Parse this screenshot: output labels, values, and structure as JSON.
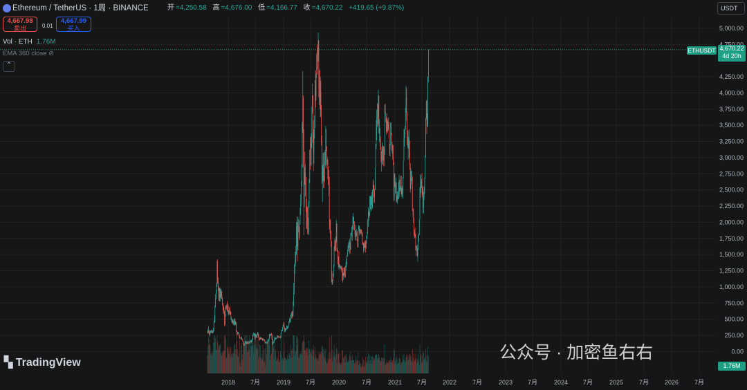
{
  "header": {
    "title": "Ethereum / TetherUS · 1周 · BINANCE",
    "open_k": "开",
    "open_v": "=4,250.58",
    "high_k": "高",
    "high_v": "=4,676.00",
    "low_k": "低",
    "low_v": "=4,166.77",
    "close_k": "收",
    "close_v": "=4,670.22",
    "change": "+419.65 (+9.87%)"
  },
  "trade": {
    "sell_price": "4,667.98",
    "sell_label": "卖出",
    "spread": "0.01",
    "buy_price": "4,667.99",
    "buy_label": "买入"
  },
  "indicators": {
    "vol_label": "Vol · ETH",
    "vol_value": "1.76M",
    "ema_label": "EMA 360 close"
  },
  "price_axis": {
    "unit": "USDT",
    "ticks": [
      "5,000.00",
      "4,750.00",
      "4,250.00",
      "4,000.00",
      "3,750.00",
      "3,500.00",
      "3,250.00",
      "3,000.00",
      "2,750.00",
      "2,500.00",
      "2,250.00",
      "2,000.00",
      "1,750.00",
      "1,500.00",
      "1,250.00",
      "1,000.00",
      "750.00",
      "500.00",
      "250.00",
      "0.00"
    ],
    "last_price": "4,670.22",
    "countdown": "4d 20h",
    "symbol": "ETHUSDT",
    "vol_last": "1.76M"
  },
  "time_axis": [
    "2018",
    "7月",
    "2019",
    "7月",
    "2020",
    "7月",
    "2021",
    "7月",
    "2022",
    "7月",
    "2023",
    "7月",
    "2024",
    "7月",
    "2025",
    "7月",
    "2026",
    "7月"
  ],
  "branding": {
    "tradingview": "TradingView",
    "watermark": "公众号 · 加密鱼右右"
  },
  "colors": {
    "up": "#26a69a",
    "down": "#ef5350",
    "bg": "#161616",
    "grid": "#232323",
    "last_price": "#1e9e84"
  },
  "chart_data": {
    "type": "candlestick",
    "title": "Ethereum / TetherUS · 1周 · BINANCE",
    "x_start": "2017-08-14",
    "interval": "1 week",
    "ylim": [
      0,
      5000
    ],
    "ohlc_note": "weekly candles, one per line: open,high,low,close (USDT); volume axis unscaled",
    "ohlc": "301,317,278,299\n299,350,283,336\n336,394,286,302\n302,328,255,275\n275,305,223,282\n282,330,264,299\n299,326,285,314\n314,340,292,303\n303,326,290,310\n310,335,283,289\n289,322,280,312\n312,371,290,345\n345,478,317,448\n448,558,441,490\n490,714,453,692\n692,890,679,822\n822,958,804,933\n933,1064,894,1037\n1037,1406,1001,1368\n1368,1427,1054,1102\n1102,1152,934,989\n989,1014,782,838\n838,991,790,966\n966,990,773,831\n831,979,776,958\n958,977,833,847\n847,954,811,926\n926,930,814,825\n825,839,712,743\n743,751,630,689\n689,719,593,646\n646,692,578,597\n597,630,391,424\n424,584,402,565\n565,712,540,689\n689,711,643,679\n679,728,655,693\n693,781,627,690\n690,744,610,686\n686,718,571,596\n596,639,555,600\n600,680,578,618\n618,699,566,614\n614,632,567,591\n591,615,490,505\n505,535,461,508\n508,507,435,442\n442,491,443,473\n473,499,426,456\n456,477,408,425\n425,510,410,465\n465,519,404,481\n481,498,406,417\n417,469,412,447\n447,453,305,318\n318,330,242,276\n276,311,258,285\n285,304,270,282\n282,305,273,287\n287,282,237,247\n247,265,193,226\n226,219,207,209\n209,206,203,205\n205,227,181,209\n209,236,183,200\n200,203,187,192\n192,183,156,165\n165,164,118,121\n121,127,94,97\n97,108,84,98\n98,161,100,130\n130,158,121,138\n138,165,118,140\n140,155,120,137\n137,162,116,159\n159,141,116,129\n129,137,115,128\n128,166,131,137\n137,153,127,132\n132,163,118,159\n159,157,138,142\n142,182,145,171\n171,165,127,150\n150,181,146,169\n169,198,154,184\n184,263,194,253\n253,290,232,269\n269,294,252,277\n277,266,183,241\n241,283,224,273\n273,282,188,240\n240,260,212,223\n223,267,219,250\n250,281,208,264\n264,306,255,290\n290,300,214,273\n273,239,214,216\n216,200,174,186\n186,215,170,196\n196,231,186,215\n215,211,188,191\n191,224,196,210\n210,203,186,202\n202,194,173,187\n187,210,165,176\n176,200,167,191\n191,185,174,184\n184,164,151,155\n155,155,124,133\n133,136,134,140\n140,164,122,148\n148,146,125,135\n135,147,114,129\n129,171,132,149\n149,186,141,173\n173,195,150,188\n188,273,182,240\n240,267,211,248\n248,277,256,268\n268,273,238,269\n269,287,247,268\n268,274,184,194\n194,189,106,118\n118,152,105,135\n135,156,126,137\n137,176,163,174\n174,221,159,206\n206,218,178,185\n185,217,185,202\n202,210,195,209\n209,219,195,203\n203,252,237,246\n246,243,219,232\n232,251,211,223\n223,233,220,227\n227,232,212,229\n229,233,219,227\n227,243,205,208\n208,288,214,277\n277,333,295,320\n320,335,309,318\n318,381,349,376\n376,417,387,409\n409,449,383,419\n419,458,347,378\n378,335,295,308\n308,357,326,350\n350,361,327,332\n332,367,338,355\n355,403,374,392\n392,397,346,359\n359,390,357,387\n387,413,376,407\n407,474,413,466\n466,512,442,496\n496,516,455,469\n469,559,446,554\n554,595,541,577\n577,614,512,573\n573,629,513,539\n539,624,567,599\n599,780,549,752\n752,1063,703,933\n933,1345,880,1266\n1266,1368,1202,1327\n1327,1537,1320,1544\n1544,1637,1367,1494\n1494,2006,1509,1940\n1940,2092,1627,1834\n1834,1995,1394,1565\n1565,2082,1602,1911\n1911,2049,1840,1935\n1935,1924,1725,1820\n1820,2028,1761,1960\n1960,2223,1959,2146\n2146,2432,2119,2331\n2331,2641,2249,2549\n2549,2898,2548,2841\n2841,3556,2848,3525\n3525,4339,3383,3910\n3910,3963,2853,3161\n3161,3437,1800,2282\n2282,2852,2233,2771\n2771,3090,2580,2759\n2759,2893,2398,2697\n2697,2704,2156,2285\n2285,2363,1899,2133\n2133,2235,1895,2093\n2093,2241,1814,1940\n1940,2071,1814,1841\n1841,2325,1804,2290\n2290,2670,2224,2635\n2635,3121,2608,3116\n3116,3313,2810,3100\n3100,3326,2892,3162\n3162,3378,2867,3224\n3224,3785,3148,3723\n3723,4146,3680,3957\n3957,3969,3226,3376\n3376,3578,2792,3069\n3069,3440,2907,3342\n3342,3650,3292,3453\n3453,4198,3454,4104\n4104,4348,3774,3952\n3952,4301,3879,4267\n4267,4612,4233,4559\n4559,4748,4288,4551\n4551,4697,4362,4624\n4624,4933,4488,4813\n4813,4720,3933,4245\n4245,4371,3813,4087\n4087,4346,3752,3864\n3864,4253,3632,4022\n4022,4190,3625,3727\n3727,3816,3187,3257\n3257,3339,2597,2595\n2595,2881,2311,2638\n2638,3073,2670,2901\n2901,3078,2522,2716\n2716,2836,2530,2645\n2645,3087,2620,2928\n2928,3116,2842,3087\n3087,3491,2880,3440\n3440,3354,3104,3175\n3175,2978,2829,2924\n2924,3019,2886,2972\n2972,2939,2666,2862\n2862,2790,2577,2645\n2645,2811,2405,2572\n2572,2706,1888,2031\n2031,2035,1833,1964\n1964,2052,1731,1870\n1870,1794,1623,1712\n1712,1649,1071,1090\n1090,1240,1033,1062\n1062,1108,1035,1115\n1115,1205,1086,1198\n1198,1350,1152,1319\n1319,1626,1314,1601\n1601,1752,1557,1719\n1719,1713,1545,1560\n1560,1780,1562,1745\n1745,2038,1692,1980\n1980,1957,1551,1563\n1563,1605,1539,1565\n1565,1561,1346,1348\n1348,1475,1280,1469\n1469,1547,1316,1310\n1310,1356,1286,1341\n1341,1327,1256,1303\n1303,1318,1281,1325\n1325,1330,1271,1275\n1275,1303,1233,1273\n1273,1322,1095,1218\n1218,1289,1066,1176\n1176,1223,1109,1213\n1213,1299,1163,1182\n1182,1252,1187,1298\n1298,1314,1142,1149\n1149,1330,1186,1311\n1311,1383,1309,1323\n1323,1439,1250,1369\n1369,1495,1350,1468\n1468,1570,1470,1576\n1576,1646,1557,1617\n1617,1687,1543,1626\n1626,1716,1599,1685\n1685,1744,1511,1658\n1658,1700,1516,1575\n1575,1832,1572,1758\n1758,1836,1712,1807\n1807,1930,1785,1840\n1840,1953,1713,1892\n1892,2095,1944,2075\n2075,2140,1974,2079\n2079,2047,1877,1970\n1970,2015,1922,1876\n1876,1864,1775,1821\n1821,1877,1720,1812\n1812,1956,1722,1814\n1814,1895,1782,1804\n1804,1856,1711,1739\n1739,1735,1611,1623\n1623,1861,1606,1871\n1871,1940,1888,1949\n1949,1946,1797,1854\n1854,1927,1837,1861\n1861,1895,1808,1832\n1832,1865,1829,1889\n1889,1843,1831,1817\n1817,1871,1781,1834\n1834,1843,1646,1695\n1695,1689,1654,1684\n1684,1669,1525,1554\n1554,1585,1586,1669\n1669,1713,1596,1612\n1612,1653,1615,1696\n1696,1726,1532,1594\n1594,1711,1640,1687\n1687,1793,1673,1795\n1795,1845,1745,1819\n1819,2046,1837,2019\n2019,2231,1929,2161\n2161,2200,2026,2115\n2115,2160,2070,2105\n2105,2392,2108,2404\n2404,2393,2199,2204\n2204,2424,2167,2271\n2271,2366,2269,2399\n2399,2469,2190,2217\n2217,2500,2231,2503\n2503,2669,2488,2577\n2577,2636,2385,2518\n2518,2577,2298,2392\n2392,2518,2298,2495\n2495,2843,2515,2844\n2844,3216,2853,3181\n3181,3575,3126,3500\n3500,3742,3266,3651\n3651,3843,3466,3653\n3653,3825,3489,3643\n3643,4052,3520,3958\n3958,3902,3372,3382\n3382,3593,3240,3461\n3461,3441,3173,3321\n3321,3325,3118,3166\n3166,3168,2932,2958\n2958,3097,2782,3098\n3098,3235,2894,3109\n3109,3192,2888,3095\n3095,3169,2959,3132\n3132,3181,2864,2949\n2949,3166,2869,3101\n3101,3802,3042,3818\n3818,3836,3748,3687\n3687,3693,3542,3624\n3624,3570,3357,3400\n3400,3685,3399,3597\n3597,3584,3378,3486\n3486,3563,3406,3520\n3520,3620,3427,3456\n3456,3553,3283,3283\n3283,3282,3024,3134\n3134,3209,3023,3212\n3212,3543,3192,3524\n3524,3545,3345,3358\n3358,3381,3106,3152\n3152,3243,3067,3165\n3165,3201,2965,3013\n3013,3195,2881,2928\n2928,2897,2321,2400\n2400,2764,2337,2750\n2750,2678,2547,2592\n2592,2623,2448,2537\n2537,2692,2439,2563\n2563,2615,2301,2324\n2324,2411,2324,2417\n2417,2479,2282,2477\n2477,2460,2345,2360\n2360,2575,2447,2618\n2618,2735,2474,2651\n2651,2658,2388,2512\n2512,2562,2489,2531\n2531,2710,2475,2717\n2717,2610,2483,2432\n2432,2533,2387,2512\n2512,2564,2400,2456\n2456,2686,2363,2700\n2700,2917,2677,2950\n2950,3440,2996,3322\n3322,3442,3170,3366\n3366,3488,3300,3433\n3433,3763,3515,3769\n3769,4110,3700,3924\n3924,4077,3572,3688\n3688,3715,3201,3372\n3372,3426,3155,3194\n3194,3317,2963,3234\n3234,3410,3137,3316\n3316,3441,2994,3097\n3097,3261,2814,2912\n2912,2789,2461,2525\n2525,2833,2509,2665\n2665,2794,2635,2665\n2665,2795,2582,2685\n2685,2718,2208,2174\n2174,2206,2083,2158\n2158,2218,1989,1992\n1992,2076,1781,1810\n1810,1887,1752,1840\n1840,1918,1766,1807\n1807,1818,1565,1579\n1579,1637,1477,1594\n1594,1629,1556,1636\n1636,1656,1503,1472\n1472,1472,1390,1596\n1596,1806,1575,1784\n1784,1830,1689,1806\n1806,1851,1800,2050\n2050,2551,2043,2526\n2526,2743,2375,2512\n2512,2732,2452,2631\n2631,2673,2533,2641\n2641,2760,2423,2534\n2534,2545,2385,2444\n2444,2566,2143,2225\n2225,2467,2130,2402\n2402,2546,2344,2509\n2509,2693,2437,2676\n2676,3039,2737,3025\n3025,3593,3002,3615\n3615,3861,3589,3877\n3877,3893,3365,3618\n3618,3683,3480,3515\n3515,4226,3465,4254\n4254,4676,4167,4670"
  }
}
